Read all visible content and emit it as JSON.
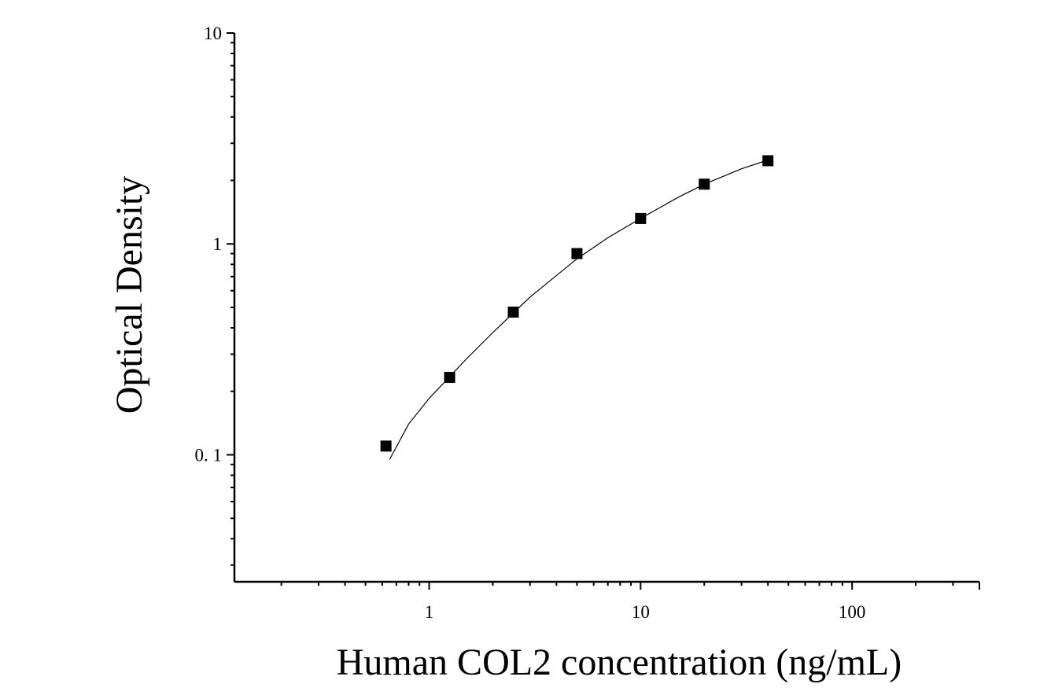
{
  "chart_data": {
    "type": "scatter",
    "title": "",
    "xlabel": "Human COL2 concentration (ng/mL)",
    "ylabel": "Optical Density",
    "x_scale": "log",
    "y_scale": "log",
    "xlim": [
      0.12,
      400
    ],
    "ylim": [
      0.025,
      10
    ],
    "grid": false,
    "legend": "none",
    "x_ticks": [
      {
        "value": 1,
        "label": "1"
      },
      {
        "value": 10,
        "label": "10"
      },
      {
        "value": 100,
        "label": "100"
      }
    ],
    "y_ticks": [
      {
        "value": 0.1,
        "label": "0. 1"
      },
      {
        "value": 1,
        "label": "1"
      },
      {
        "value": 10,
        "label": "10"
      }
    ],
    "series": [
      {
        "marker": "square",
        "color": "#000000",
        "points": [
          {
            "x": 0.625,
            "y": 0.11
          },
          {
            "x": 1.25,
            "y": 0.233
          },
          {
            "x": 2.5,
            "y": 0.475
          },
          {
            "x": 5,
            "y": 0.9
          },
          {
            "x": 10,
            "y": 1.32
          },
          {
            "x": 20,
            "y": 1.92
          },
          {
            "x": 40,
            "y": 2.48
          }
        ]
      }
    ],
    "fit_curve": {
      "color": "#000000",
      "points": [
        {
          "x": 0.65,
          "y": 0.095
        },
        {
          "x": 0.8,
          "y": 0.14
        },
        {
          "x": 1.0,
          "y": 0.185
        },
        {
          "x": 1.5,
          "y": 0.285
        },
        {
          "x": 2.0,
          "y": 0.38
        },
        {
          "x": 3.0,
          "y": 0.56
        },
        {
          "x": 5.0,
          "y": 0.85
        },
        {
          "x": 7.0,
          "y": 1.07
        },
        {
          "x": 10.0,
          "y": 1.32
        },
        {
          "x": 15.0,
          "y": 1.66
        },
        {
          "x": 20.0,
          "y": 1.92
        },
        {
          "x": 30.0,
          "y": 2.27
        },
        {
          "x": 40.0,
          "y": 2.5
        }
      ]
    }
  }
}
